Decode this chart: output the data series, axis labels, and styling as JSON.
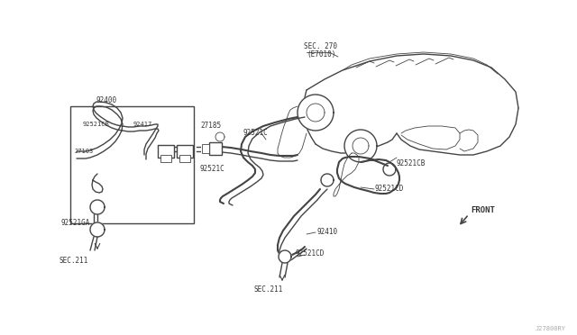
{
  "bg_color": "#ffffff",
  "lc": "#444444",
  "lw": 1.0,
  "tlw": 0.6,
  "fig_width": 6.4,
  "fig_height": 3.72,
  "dpi": 100,
  "watermark": "J27800RY",
  "fs": 5.5,
  "labels": {
    "sec270": "SEC. 270",
    "e7010": "(E7010)",
    "lbl92400": "92400",
    "lbl92521CB": "92521CB",
    "lbl92417": "92417",
    "lbl27185": "27185",
    "lbl92521C_top": "92521C",
    "lbl27103": "27103",
    "lbl92521C_mid": "92521C",
    "lbl92521GA": "92521GA",
    "lbl92521CB_r": "92521CB",
    "lbl92410": "92410",
    "lbl92521CD_r": "92521CD",
    "lbl92521CD_b": "92521CD",
    "sec211_l": "SEC.211",
    "sec211_r": "SEC.211",
    "front": "FRONT"
  }
}
